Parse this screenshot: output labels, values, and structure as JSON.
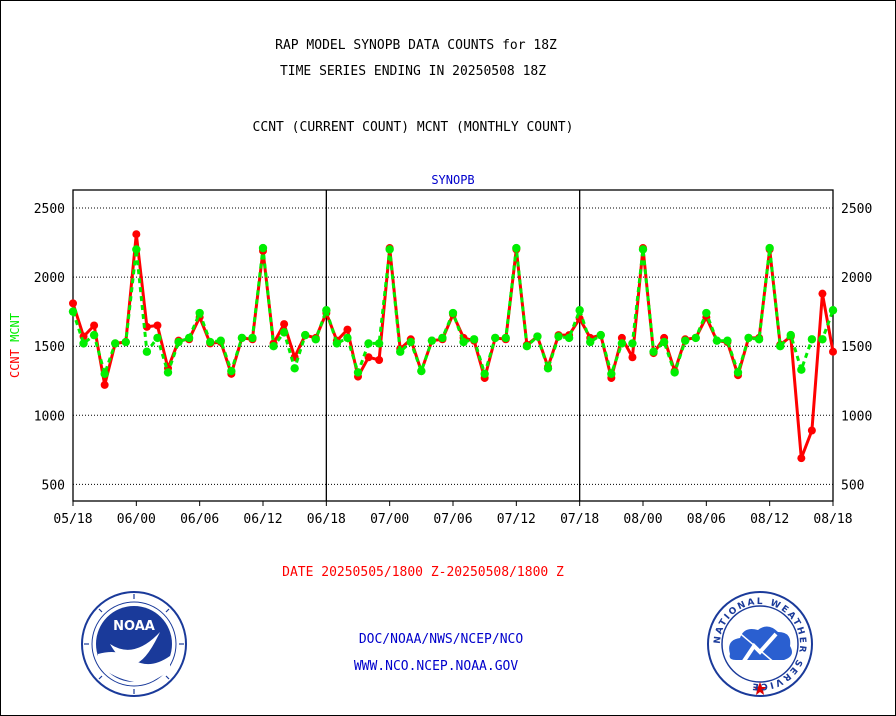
{
  "header": {
    "title_line1": "RAP MODEL SYNOPB DATA COUNTS for 18Z",
    "title_line2": "TIME SERIES ENDING IN 20250508 18Z",
    "subtitle": "CCNT (CURRENT COUNT) MCNT (MONTHLY COUNT)"
  },
  "footer": {
    "date_range": "DATE 20250505/1800 Z-20250508/1800 Z",
    "org_line": "DOC/NOAA/NWS/NCEP/NCO",
    "url_line": "WWW.NCO.NCEP.NOAA.GOV"
  },
  "logos": {
    "noaa_text": "NOAA",
    "nws_text": "NATIONAL WEATHER SERVICE"
  },
  "colors": {
    "ccnt": "#ff0000",
    "mcnt": "#00ee00",
    "panel_label": "#0000cc",
    "footer_blue": "#0000cc",
    "noaa_blue": "#1a3a9a",
    "nws_blue": "#2a5fd0"
  },
  "chart_data": {
    "type": "line",
    "title": "SYNOPB",
    "ylabel_ccnt": "CCNT",
    "ylabel_mcnt": "MCNT",
    "ylim": [
      380,
      2630
    ],
    "yticks": [
      500,
      1000,
      1500,
      2000,
      2500
    ],
    "ytick_labels": [
      "500",
      "1000",
      "1500",
      "2000",
      "2500"
    ],
    "xlim": [
      0,
      72
    ],
    "xtick_positions": [
      0,
      6,
      12,
      18,
      24,
      30,
      36,
      42,
      48,
      54,
      60,
      66,
      72
    ],
    "xtick_labels": [
      "05/18",
      "06/00",
      "06/06",
      "06/12",
      "06/18",
      "07/00",
      "07/06",
      "07/12",
      "07/18",
      "08/00",
      "08/06",
      "08/12",
      "08/18"
    ],
    "grid": true,
    "day_dividers": [
      24,
      48
    ],
    "series": [
      {
        "name": "CCNT",
        "points": [
          [
            0,
            1810
          ],
          [
            1,
            1570
          ],
          [
            2,
            1650
          ],
          [
            3,
            1220
          ],
          [
            4,
            1520
          ],
          [
            5,
            1530
          ],
          [
            6,
            2310
          ],
          [
            7,
            1640
          ],
          [
            8,
            1650
          ],
          [
            9,
            1340
          ],
          [
            10,
            1540
          ],
          [
            11,
            1550
          ],
          [
            12,
            1710
          ],
          [
            13,
            1520
          ],
          [
            14,
            1530
          ],
          [
            15,
            1300
          ],
          [
            16,
            1560
          ],
          [
            17,
            1550
          ],
          [
            18,
            2190
          ],
          [
            19,
            1520
          ],
          [
            20,
            1660
          ],
          [
            21,
            1420
          ],
          [
            22,
            1580
          ],
          [
            23,
            1560
          ],
          [
            24,
            1740
          ],
          [
            25,
            1540
          ],
          [
            26,
            1620
          ],
          [
            27,
            1280
          ],
          [
            28,
            1420
          ],
          [
            29,
            1400
          ],
          [
            30,
            2210
          ],
          [
            31,
            1480
          ],
          [
            32,
            1550
          ],
          [
            33,
            1320
          ],
          [
            34,
            1540
          ],
          [
            35,
            1550
          ],
          [
            36,
            1730
          ],
          [
            37,
            1560
          ],
          [
            38,
            1540
          ],
          [
            39,
            1270
          ],
          [
            40,
            1560
          ],
          [
            41,
            1550
          ],
          [
            42,
            2200
          ],
          [
            43,
            1510
          ],
          [
            44,
            1570
          ],
          [
            45,
            1350
          ],
          [
            46,
            1580
          ],
          [
            47,
            1580
          ],
          [
            48,
            1700
          ],
          [
            49,
            1560
          ],
          [
            50,
            1580
          ],
          [
            51,
            1270
          ],
          [
            52,
            1560
          ],
          [
            53,
            1420
          ],
          [
            54,
            2210
          ],
          [
            55,
            1450
          ],
          [
            56,
            1560
          ],
          [
            57,
            1320
          ],
          [
            58,
            1550
          ],
          [
            59,
            1560
          ],
          [
            60,
            1710
          ],
          [
            61,
            1540
          ],
          [
            62,
            1530
          ],
          [
            63,
            1290
          ],
          [
            64,
            1560
          ],
          [
            65,
            1560
          ],
          [
            66,
            2200
          ],
          [
            67,
            1510
          ],
          [
            68,
            1570
          ],
          [
            69,
            690
          ],
          [
            70,
            890
          ],
          [
            71,
            1880
          ],
          [
            72,
            1460
          ]
        ]
      },
      {
        "name": "MCNT",
        "points": [
          [
            0,
            1750
          ],
          [
            1,
            1520
          ],
          [
            2,
            1580
          ],
          [
            3,
            1300
          ],
          [
            4,
            1520
          ],
          [
            5,
            1530
          ],
          [
            6,
            2200
          ],
          [
            7,
            1460
          ],
          [
            8,
            1560
          ],
          [
            9,
            1310
          ],
          [
            10,
            1530
          ],
          [
            11,
            1560
          ],
          [
            12,
            1740
          ],
          [
            13,
            1530
          ],
          [
            14,
            1540
          ],
          [
            15,
            1320
          ],
          [
            16,
            1560
          ],
          [
            17,
            1560
          ],
          [
            18,
            2210
          ],
          [
            19,
            1500
          ],
          [
            20,
            1600
          ],
          [
            21,
            1340
          ],
          [
            22,
            1580
          ],
          [
            23,
            1550
          ],
          [
            24,
            1760
          ],
          [
            25,
            1520
          ],
          [
            26,
            1560
          ],
          [
            27,
            1310
          ],
          [
            28,
            1520
          ],
          [
            29,
            1520
          ],
          [
            30,
            2200
          ],
          [
            31,
            1460
          ],
          [
            32,
            1530
          ],
          [
            33,
            1320
          ],
          [
            34,
            1540
          ],
          [
            35,
            1560
          ],
          [
            36,
            1740
          ],
          [
            37,
            1530
          ],
          [
            38,
            1550
          ],
          [
            39,
            1300
          ],
          [
            40,
            1560
          ],
          [
            41,
            1560
          ],
          [
            42,
            2210
          ],
          [
            43,
            1500
          ],
          [
            44,
            1570
          ],
          [
            45,
            1340
          ],
          [
            46,
            1570
          ],
          [
            47,
            1560
          ],
          [
            48,
            1760
          ],
          [
            49,
            1530
          ],
          [
            50,
            1580
          ],
          [
            51,
            1300
          ],
          [
            52,
            1520
          ],
          [
            53,
            1520
          ],
          [
            54,
            2200
          ],
          [
            55,
            1460
          ],
          [
            56,
            1530
          ],
          [
            57,
            1310
          ],
          [
            58,
            1540
          ],
          [
            59,
            1560
          ],
          [
            60,
            1740
          ],
          [
            61,
            1540
          ],
          [
            62,
            1540
          ],
          [
            63,
            1310
          ],
          [
            64,
            1560
          ],
          [
            65,
            1550
          ],
          [
            66,
            2210
          ],
          [
            67,
            1500
          ],
          [
            68,
            1580
          ],
          [
            69,
            1330
          ],
          [
            70,
            1550
          ],
          [
            71,
            1550
          ],
          [
            72,
            1760
          ]
        ]
      }
    ]
  }
}
